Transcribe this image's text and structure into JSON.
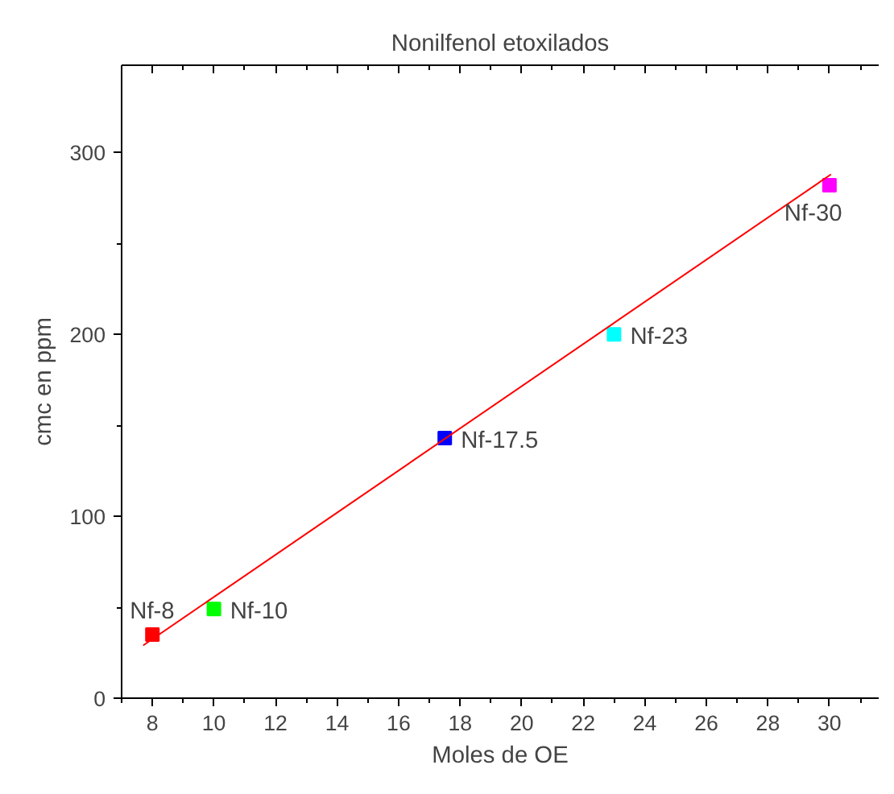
{
  "chart_data": {
    "type": "scatter",
    "title": "Nonilfenol etoxilados",
    "xlabel": "Moles de OE",
    "ylabel": "cmc en ppm",
    "xlim": [
      7,
      31.6
    ],
    "ylim": [
      0,
      348
    ],
    "xticks": [
      8,
      10,
      12,
      14,
      16,
      18,
      20,
      22,
      24,
      26,
      28,
      30
    ],
    "yticks": [
      0,
      100,
      200,
      300
    ],
    "grid": false,
    "marker": "square",
    "series": [
      {
        "x": [
          8,
          10,
          17.5,
          23,
          30
        ],
        "values": [
          35,
          49,
          143,
          200,
          282
        ],
        "colors": [
          "#ff0000",
          "#00ff00",
          "#0000ff",
          "#00ffff",
          "#ff00ff"
        ]
      },
      {
        "type": "line",
        "x": [
          7.7,
          30.05
        ],
        "values": [
          29,
          288
        ],
        "color": "#ff0000",
        "line_style": "solid",
        "marker": "none"
      }
    ],
    "annotations": [
      {
        "text": "Nf-8",
        "x": 8,
        "y": 35
      },
      {
        "text": "Nf-10",
        "x": 10,
        "y": 49
      },
      {
        "text": "Nf-17.5",
        "x": 17.5,
        "y": 143
      },
      {
        "text": "Nf-23",
        "x": 23,
        "y": 200
      },
      {
        "text": "Nf-30",
        "x": 30,
        "y": 282
      }
    ]
  }
}
